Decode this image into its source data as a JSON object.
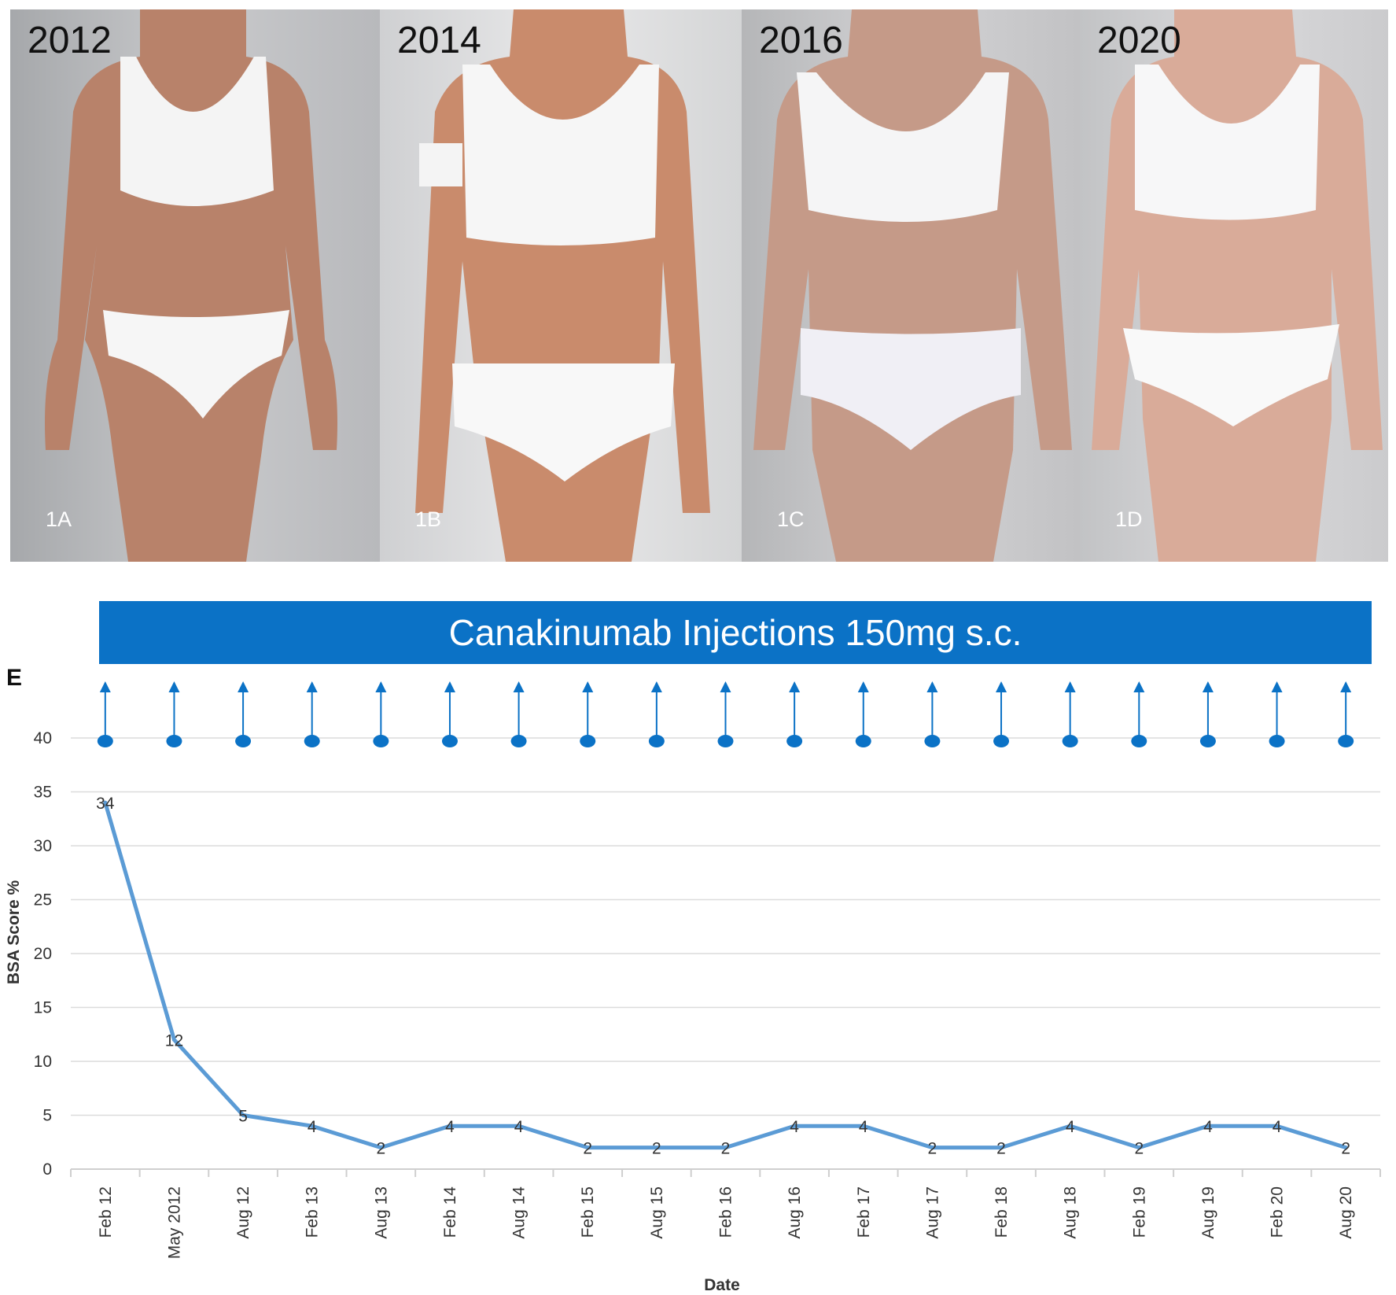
{
  "panels": [
    {
      "year": "2012",
      "label": "1A"
    },
    {
      "year": "2014",
      "label": "1B"
    },
    {
      "year": "2016",
      "label": "1C"
    },
    {
      "year": "2020",
      "label": "1D"
    }
  ],
  "banner": "Canakinumab Injections 150mg s.c.",
  "panel_letter": "E",
  "chart_data": {
    "type": "line",
    "xlabel": "Date",
    "ylabel": "BSA Score %",
    "ylim": [
      0,
      40
    ],
    "yticks": [
      0,
      5,
      10,
      15,
      20,
      25,
      30,
      35,
      40
    ],
    "grid": true,
    "categories": [
      "Feb 12",
      "May 2012",
      "Aug 12",
      "Feb 13",
      "Aug 13",
      "Feb 14",
      "Aug 14",
      "Feb 15",
      "Aug 15",
      "Feb 16",
      "Aug 16",
      "Feb 17",
      "Aug 17",
      "Feb 18",
      "Aug 18",
      "Feb 19",
      "Aug 19",
      "Feb 20",
      "Aug 20"
    ],
    "series": [
      {
        "values": [
          34,
          12,
          5,
          4,
          2,
          4,
          4,
          2,
          2,
          2,
          4,
          4,
          2,
          2,
          4,
          2,
          4,
          4,
          2
        ],
        "color": "#5b9bd5"
      }
    ],
    "data_labels": [
      "34",
      "12",
      "5",
      "4",
      "2",
      "4",
      "4",
      "2",
      "2",
      "2",
      "4",
      "4",
      "2",
      "2",
      "4",
      "2",
      "4",
      "4",
      "2"
    ],
    "injection_markers": {
      "count": 19,
      "color": "#0b72c6",
      "icon": "arrow-up-with-dot"
    }
  }
}
